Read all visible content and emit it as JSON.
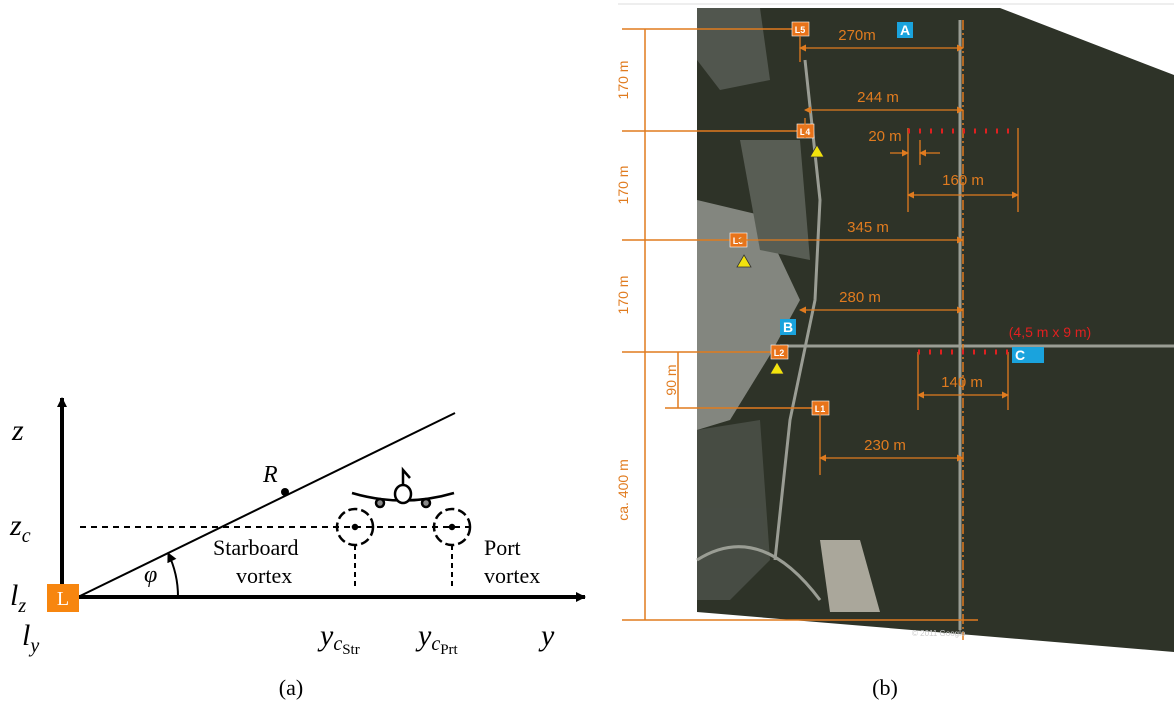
{
  "panel_a": {
    "caption": "(a)",
    "z_axis": "z",
    "y_axis": "y",
    "z_c": {
      "base": "z",
      "sub": "c"
    },
    "l_z": {
      "base": "l",
      "sub": "z"
    },
    "l_y": {
      "base": "l",
      "sub": "y"
    },
    "lidar": "L",
    "range": "R",
    "angle": "φ",
    "starboard": [
      "Starboard",
      "vortex"
    ],
    "port": [
      "Port",
      "vortex"
    ],
    "y_str": {
      "base": "y",
      "sub": "c",
      "subsub": "Str"
    },
    "y_prt": {
      "base": "y",
      "sub": "c",
      "subsub": "Prt"
    }
  },
  "panel_b": {
    "caption": "(b)",
    "sites": [
      "L5",
      "L4",
      "L3",
      "L2",
      "L1"
    ],
    "markers": [
      "A",
      "B",
      "C"
    ],
    "distances": [
      "270m",
      "244 m",
      "20 m",
      "160 m",
      "345 m",
      "280 m",
      "140 m",
      "230 m"
    ],
    "vertical": [
      "170 m",
      "170 m",
      "170 m",
      "90 m",
      "ca. 400 m"
    ],
    "plate": "(4,5 m x 9 m)",
    "copyright": "© 2011 Google"
  }
}
